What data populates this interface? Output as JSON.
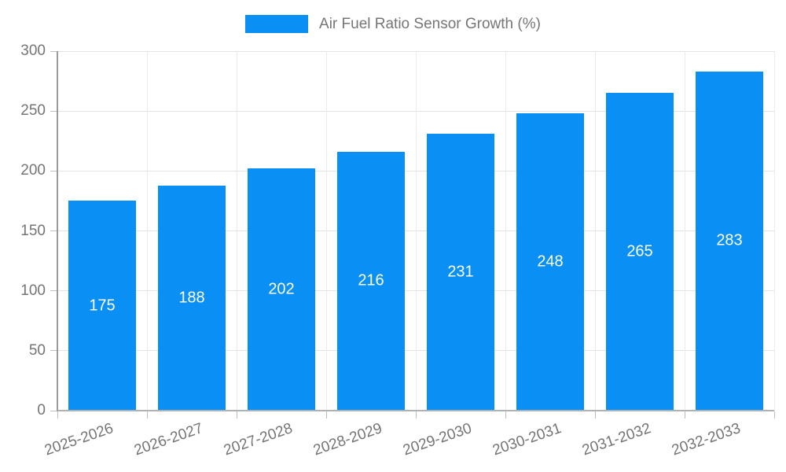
{
  "legend": {
    "label": "Air Fuel Ratio Sensor Growth (%)"
  },
  "colors": {
    "bar": "#0a90f5",
    "text": "#757575",
    "value_label": "#ffffff",
    "grid_h": "#e3e3e3",
    "grid_v": "#ebebeb",
    "axis": "#a5a5a5"
  },
  "chart_data": {
    "type": "bar",
    "title": "Air Fuel Ratio Sensor Growth (%)",
    "categories": [
      "2025-2026",
      "2026-2027",
      "2027-2028",
      "2028-2029",
      "2029-2030",
      "2030-2031",
      "2031-2032",
      "2032-2033"
    ],
    "values": [
      175,
      188,
      202,
      216,
      231,
      248,
      265,
      283
    ],
    "series_name": "Air Fuel Ratio Sensor Growth (%)",
    "xlabel": "",
    "ylabel": "",
    "ylim": [
      0,
      300
    ],
    "yticks": [
      0,
      50,
      100,
      150,
      200,
      250,
      300
    ],
    "grid": true,
    "legend_position": "top-center",
    "value_labels": "inside-center"
  }
}
